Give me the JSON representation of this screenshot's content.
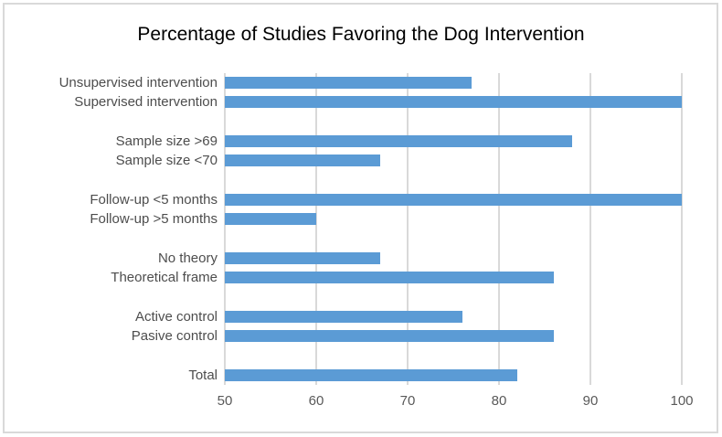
{
  "window": {
    "background": "#ffffff",
    "border_color": "#d9d9d9"
  },
  "chart_data": {
    "type": "bar",
    "orientation": "horizontal",
    "title": "Percentage of Studies Favoring the Dog Intervention",
    "xlabel": "",
    "ylabel": "",
    "xlim": [
      50,
      100
    ],
    "xticks": [
      50,
      60,
      70,
      80,
      90,
      100
    ],
    "grid": true,
    "legend": "none",
    "bar_color": "#5b9bd5",
    "gridline_color": "#d9d9d9",
    "title_color": "#000000",
    "category_label_color": "#4d4d4d",
    "tick_label_color": "#595959",
    "categories": [
      "Unsupervised intervention",
      "Supervised intervention",
      "Sample size >69",
      "Sample size <70",
      "Follow-up <5 months",
      "Follow-up >5 months",
      "No theory",
      "Theoretical frame",
      "Active control",
      "Pasive control",
      "Total"
    ],
    "values": [
      77,
      100,
      88,
      67,
      100,
      60,
      67,
      86,
      76,
      86,
      82
    ],
    "rows": [
      {
        "label": "Unsupervised intervention",
        "value": 77
      },
      {
        "label": "Supervised intervention",
        "value": 100
      },
      {
        "spacer": true
      },
      {
        "label": "Sample size >69",
        "value": 88
      },
      {
        "label": "Sample size <70",
        "value": 67
      },
      {
        "spacer": true
      },
      {
        "label": "Follow-up <5 months",
        "value": 100
      },
      {
        "label": "Follow-up >5 months",
        "value": 60
      },
      {
        "spacer": true
      },
      {
        "label": "No theory",
        "value": 67
      },
      {
        "label": "Theoretical frame",
        "value": 86
      },
      {
        "spacer": true
      },
      {
        "label": "Active control",
        "value": 76
      },
      {
        "label": "Pasive control",
        "value": 86
      },
      {
        "spacer": true
      },
      {
        "label": "Total",
        "value": 82
      }
    ]
  }
}
